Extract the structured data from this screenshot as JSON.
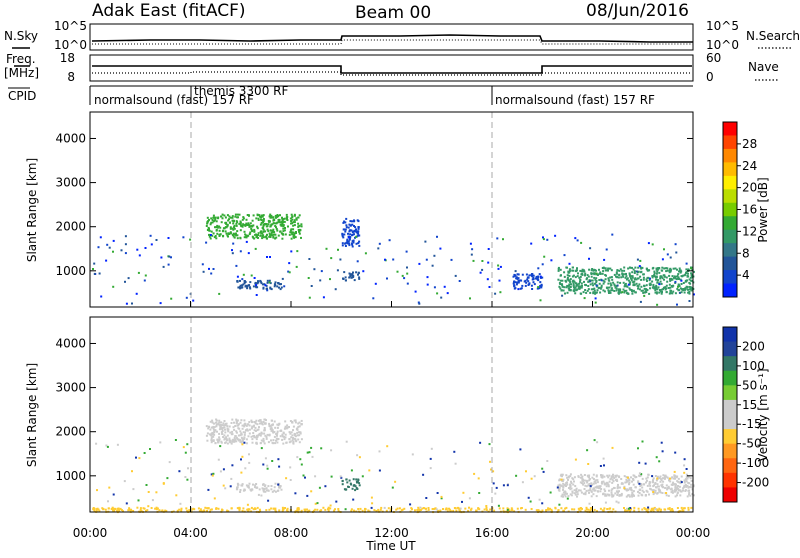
{
  "header": {
    "station": "Adak East (fitACF)",
    "beam": "Beam 00",
    "date": "08/Jun/2016"
  },
  "nsky_panel": {
    "left_label": "N.Sky",
    "right_label": "N.Search",
    "left_ticks": [
      "10^5",
      "10^0"
    ],
    "right_ticks": [
      "10^5",
      "10^0"
    ]
  },
  "freq_panel": {
    "left_label_line1": "Freq.",
    "left_label_line2": "[MHz]",
    "right_label": "Nave",
    "left_ticks": [
      "18",
      "8"
    ],
    "right_ticks": [
      "60",
      "0"
    ]
  },
  "cpid_panel": {
    "label": "CPID",
    "segments": [
      {
        "start_hour": 0,
        "label": "normalsound (fast) 157 RF"
      },
      {
        "start_hour": 4,
        "label": "themis 3300 RF"
      },
      {
        "start_hour": 16,
        "label": "normalsound (fast) 157 RF"
      }
    ]
  },
  "power_panel": {
    "ylabel": "Slant Range [km]",
    "colorbar_label": "Power [dB]",
    "colorbar_ticks": [
      "28",
      "24",
      "20",
      "16",
      "12",
      "8",
      "4"
    ],
    "colorbar_colors": [
      "#ff0000",
      "#ff4400",
      "#ff8800",
      "#ffbb00",
      "#ffee00",
      "#bbdd00",
      "#77cc00",
      "#33aa33",
      "#339966",
      "#337788",
      "#225599",
      "#1144cc",
      "#0022ff"
    ]
  },
  "velocity_panel": {
    "ylabel": "Slant Range [km]",
    "colorbar_label": "Velocity [m s⁻¹]",
    "colorbar_ticks": [
      "200",
      "100",
      "50",
      "15",
      "-15",
      "-50",
      "-100",
      "-200"
    ],
    "colorbar_colors": [
      "#1133aa",
      "#224499",
      "#337766",
      "#33aa33",
      "#77cc33",
      "#cccccc",
      "#cccccc",
      "#ffcc33",
      "#ff9922",
      "#ff6611",
      "#ff3300",
      "#ee0000"
    ]
  },
  "axes": {
    "xlabel": "Time UT",
    "x_ticks": [
      "00:00",
      "04:00",
      "08:00",
      "12:00",
      "16:00",
      "20:00",
      "00:00"
    ],
    "y_ticks": [
      "1000",
      "2000",
      "3000",
      "4000"
    ]
  },
  "chart_data": {
    "type": "heatmap",
    "title": "Adak East (fitACF)",
    "subtitle": "Beam 00",
    "xlabel": "Time UT",
    "ylabel": "Slant Range [km]",
    "xlim": [
      0,
      24
    ],
    "ylim": [
      180,
      4600
    ],
    "y_ticks": [
      1000,
      2000,
      3000,
      4000
    ],
    "frequency_mhz": [
      {
        "from_hour": 0,
        "to_hour": 10,
        "value": 14.5
      },
      {
        "from_hour": 10,
        "to_hour": 18,
        "value": 10.5
      },
      {
        "from_hour": 18,
        "to_hour": 24,
        "value": 14.5
      }
    ],
    "power_regions": [
      {
        "t0": 4.6,
        "t1": 8.4,
        "r0": 1750,
        "r1": 2300,
        "color": "#33aa33"
      },
      {
        "t0": 5.8,
        "t1": 7.6,
        "r0": 600,
        "r1": 800,
        "color": "#225599"
      },
      {
        "t0": 10.0,
        "t1": 10.7,
        "r0": 800,
        "r1": 1000,
        "color": "#225599"
      },
      {
        "t0": 10.0,
        "t1": 10.7,
        "r0": 1550,
        "r1": 2200,
        "color": "#1144cc"
      },
      {
        "t0": 16.8,
        "t1": 18.0,
        "r0": 600,
        "r1": 950,
        "color": "#1144cc"
      },
      {
        "t0": 18.6,
        "t1": 24.0,
        "r0": 500,
        "r1": 1100,
        "color": "#339966"
      }
    ],
    "velocity_regions": [
      {
        "t0": 4.6,
        "t1": 8.4,
        "r0": 1750,
        "r1": 2300,
        "color": "#cccccc"
      },
      {
        "t0": 5.8,
        "t1": 7.6,
        "r0": 650,
        "r1": 850,
        "color": "#cccccc"
      },
      {
        "t0": 10.0,
        "t1": 10.7,
        "r0": 700,
        "r1": 950,
        "color": "#337766"
      },
      {
        "t0": 18.6,
        "t1": 24.0,
        "r0": 550,
        "r1": 1050,
        "color": "#cccccc"
      },
      {
        "t0": 0.0,
        "t1": 24.0,
        "r0": 200,
        "r1": 300,
        "color": "#ffcc33"
      }
    ]
  }
}
